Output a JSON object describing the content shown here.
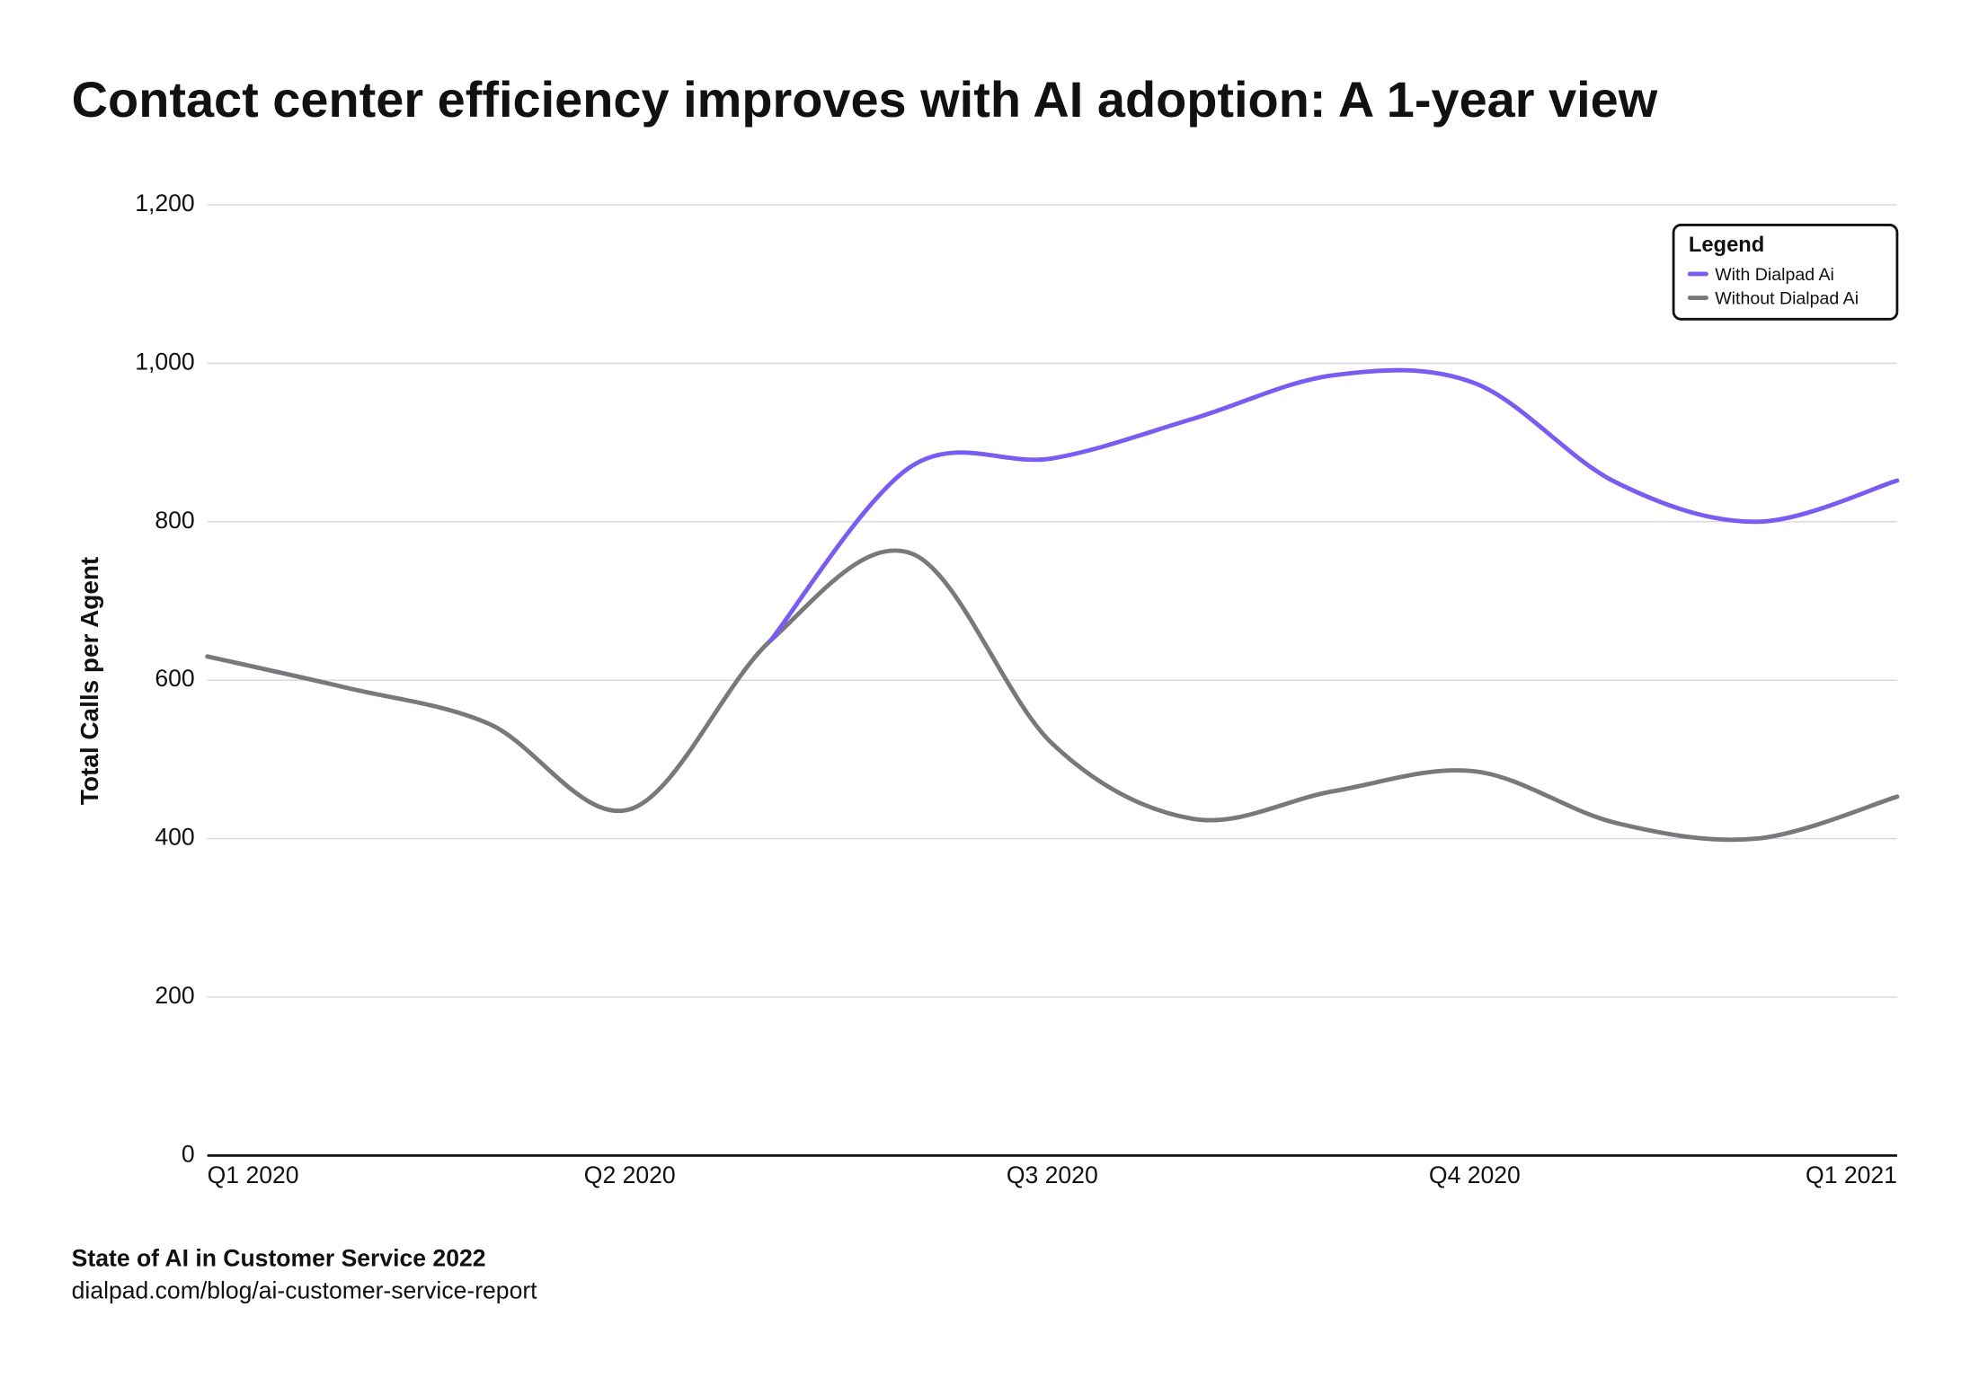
{
  "chart_data": {
    "type": "line",
    "title": "Contact center efficiency improves with AI adoption: A 1-year view",
    "y_label": "Total Calls per Agent",
    "categories": [
      "Q1 2020",
      null,
      null,
      "Q2 2020",
      null,
      null,
      "Q3 2020",
      null,
      null,
      "Q4 2020",
      null,
      null,
      "Q1 2021"
    ],
    "series": [
      {
        "name": "With Dialpad Ai",
        "color": "#7b5cf0",
        "values": [
          null,
          null,
          null,
          null,
          650,
          870,
          880,
          930,
          985,
          975,
          850,
          800,
          852
        ]
      },
      {
        "name": "Without Dialpad Ai",
        "color": "#7a787c",
        "values": [
          630,
          590,
          545,
          437,
          650,
          760,
          520,
          425,
          460,
          485,
          420,
          400,
          453
        ]
      }
    ],
    "ylim": [
      0,
      1200
    ],
    "yticks": [
      0,
      200,
      400,
      600,
      800,
      {
        "value": 1000,
        "label": "1,000"
      },
      {
        "value": 1200,
        "label": "1,200"
      }
    ],
    "grid": true,
    "legend_title": "Legend",
    "legend_position": "top-right",
    "source": "State of AI in Customer Service 2022",
    "source_url": "dialpad.com/blog/ai-customer-service-report"
  }
}
